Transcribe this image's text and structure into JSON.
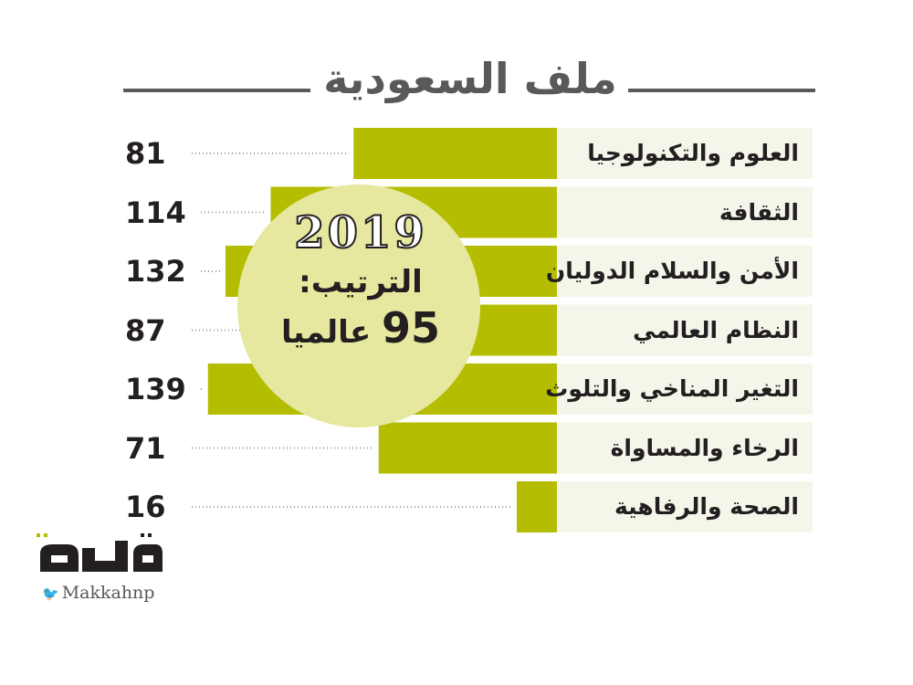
{
  "title": "ملف السعودية",
  "chart_data": {
    "type": "bar",
    "orientation": "horizontal",
    "categories": [
      "العلوم والتكنولوجيا",
      "الثقافة",
      "الأمن والسلام الدوليان",
      "النظام العالمي",
      "التغير المناخي والتلوث",
      "الرخاء والمساواة",
      "الصحة والرفاهية"
    ],
    "values": [
      81,
      114,
      132,
      87,
      139,
      71,
      16
    ],
    "bar_color": "#b5bd00",
    "row_background": "#f5f6ea",
    "leader_style": "dotted"
  },
  "badge": {
    "year": "2019",
    "rank_label": "الترتيب:",
    "rank_value": "95",
    "rank_suffix": "عالميا",
    "circle_color": "#e5e89e"
  },
  "logo": {
    "mark_text": "مكة",
    "handle": "Makkahnp",
    "icon": "twitter-bird-icon"
  },
  "colors": {
    "title": "#58595b",
    "text": "#231f20",
    "accent": "#b5bd00"
  }
}
